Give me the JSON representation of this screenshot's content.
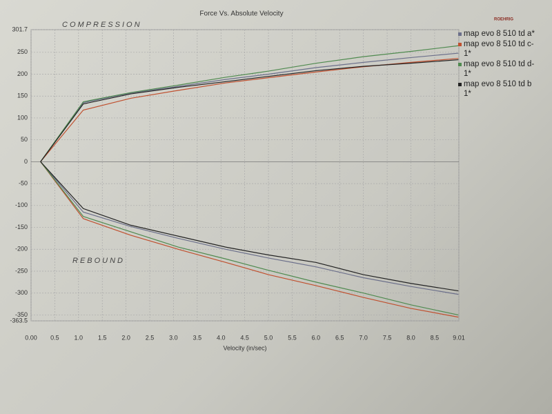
{
  "chart_data": {
    "type": "line",
    "title": "Force Vs. Absolute Velocity",
    "x_label": "Velocity (in/sec)",
    "logo": "ROEHRIG",
    "annotations": [
      "COMPRESSION",
      "REBOUND"
    ],
    "x": [
      0.2,
      1.1,
      2.1,
      3.1,
      4.1,
      5.0,
      6.0,
      7.0,
      8.0,
      9.0
    ],
    "series": [
      {
        "name": "map evo 8 510 td a*",
        "color": "#6b6f8a",
        "compression": [
          0,
          135,
          157,
          172,
          188,
          200,
          215,
          227,
          238,
          248
        ],
        "rebound": [
          0,
          -115,
          -148,
          -175,
          -200,
          -220,
          -240,
          -265,
          -285,
          -303
        ]
      },
      {
        "name": "map evo 8 510 td c-1*",
        "color": "#c0502f",
        "compression": [
          0,
          118,
          145,
          163,
          180,
          192,
          205,
          217,
          227,
          236
        ],
        "rebound": [
          0,
          -130,
          -168,
          -200,
          -230,
          -258,
          -283,
          -310,
          -335,
          -355
        ]
      },
      {
        "name": "map evo 8 510 td d-1*",
        "color": "#4f8a4f",
        "compression": [
          0,
          137,
          158,
          175,
          193,
          207,
          225,
          240,
          252,
          265
        ],
        "rebound": [
          0,
          -125,
          -160,
          -195,
          -222,
          -248,
          -275,
          -300,
          -327,
          -350
        ]
      },
      {
        "name": "map evo 8 510 td b 1*",
        "color": "#222222",
        "compression": [
          0,
          132,
          155,
          170,
          183,
          195,
          208,
          218,
          225,
          233
        ],
        "rebound": [
          0,
          -107,
          -145,
          -170,
          -195,
          -213,
          -230,
          -258,
          -278,
          -295
        ]
      }
    ],
    "xlim": [
      0,
      9.01
    ],
    "xticks": [
      {
        "value": 0,
        "label": "0.00"
      },
      0.5,
      {
        "value": 1,
        "label": "1.0"
      },
      1.5,
      {
        "value": 2,
        "label": "2.0"
      },
      2.5,
      {
        "value": 3,
        "label": "3.0"
      },
      3.5,
      {
        "value": 4,
        "label": "4.0"
      },
      4.5,
      {
        "value": 5,
        "label": "5.0"
      },
      5.5,
      {
        "value": 6,
        "label": "6.0"
      },
      6.5,
      {
        "value": 7,
        "label": "7.0"
      },
      7.5,
      {
        "value": 8,
        "label": "8.0"
      },
      8.5,
      9.01
    ],
    "ylim": [
      -363.5,
      301.7
    ],
    "yticks": [
      301.7,
      250,
      200,
      150,
      100,
      50,
      0,
      -50,
      -100,
      -150,
      -200,
      -250,
      -300,
      -350,
      -363.5
    ],
    "grid": true
  }
}
